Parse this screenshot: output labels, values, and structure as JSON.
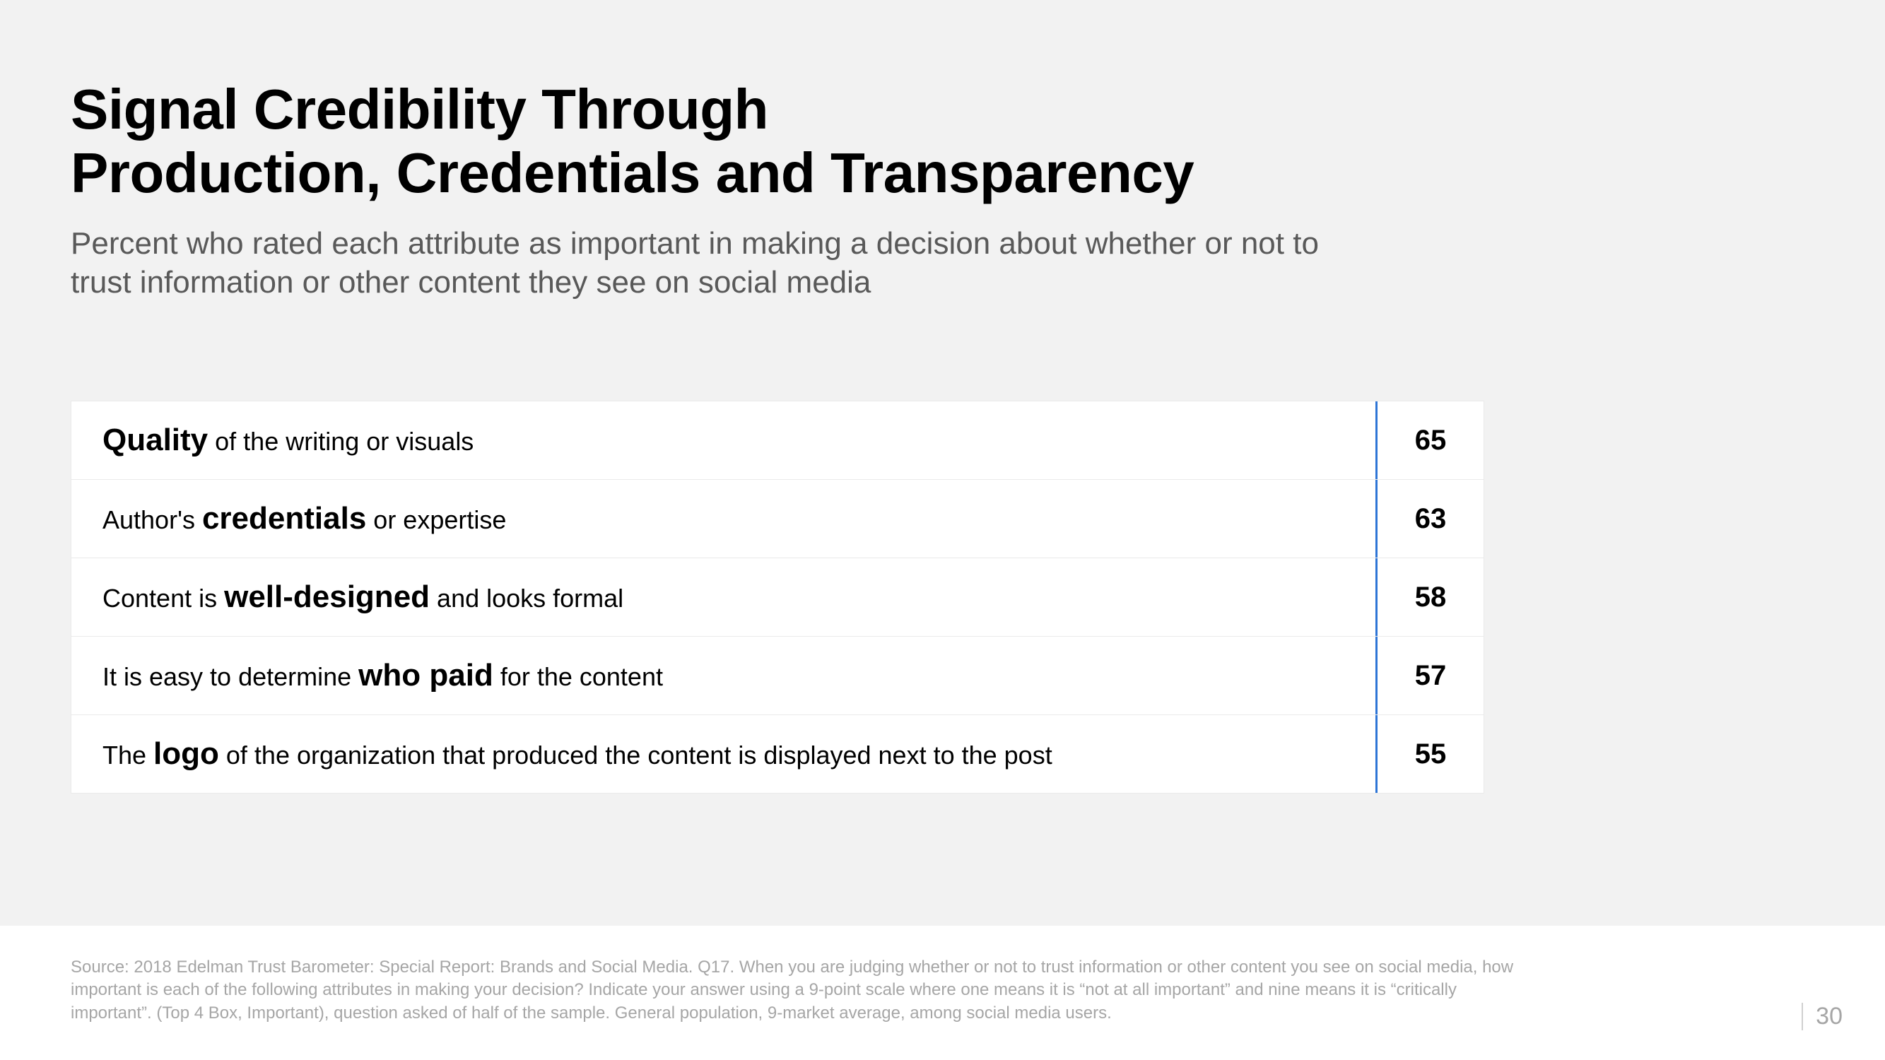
{
  "title_line1": "Signal Credibility Through",
  "title_line2": "Production, Credentials and Transparency",
  "subtitle": "Percent who rated each attribute as important in making a decision about whether or not to trust information or other content they see on social media",
  "accent_color": "#2e75d6",
  "rows": [
    {
      "pre": "",
      "bold": "Quality",
      "post": " of the writing or visuals",
      "value": "65"
    },
    {
      "pre": "Author's ",
      "bold": "credentials",
      "post": " or expertise",
      "value": "63"
    },
    {
      "pre": "Content is ",
      "bold": "well-designed",
      "post": " and looks formal",
      "value": "58"
    },
    {
      "pre": "It is easy to determine ",
      "bold": "who paid",
      "post": " for the content",
      "value": "57"
    },
    {
      "pre": "The ",
      "bold": "logo",
      "post": " of the organization that produced the content is displayed next to the post",
      "value": "55"
    }
  ],
  "source": "Source: 2018 Edelman Trust Barometer: Special Report: Brands and Social Media. Q17. When you are judging whether or not to trust information or other content you see on social media, how important is each of the following attributes in making your decision? Indicate your answer using a 9-point scale where one means it is “not at all important” and nine means it is “critically important”. (Top 4 Box, Important), question asked of half of the sample. General population, 9-market average, among social media users.",
  "page_number": "30"
}
